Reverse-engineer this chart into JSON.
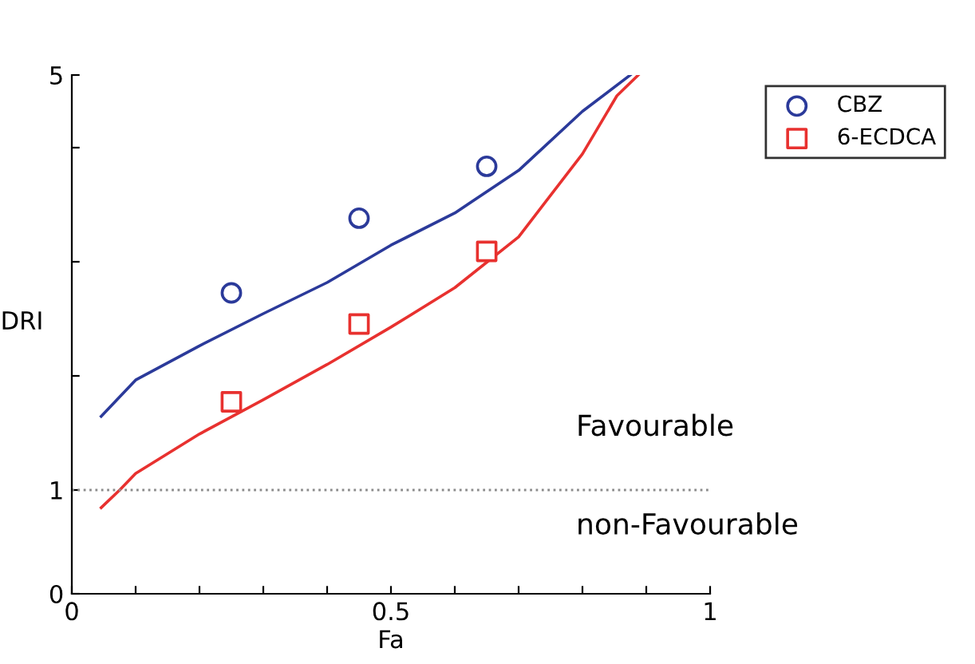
{
  "chart_data": {
    "type": "line",
    "xlabel": "Fa",
    "ylabel": "DRI",
    "xlim": [
      0,
      1
    ],
    "ylim": [
      0,
      5
    ],
    "xticks": [
      0,
      {
        "value": 0.1,
        "label": null
      },
      {
        "value": 0.2,
        "label": null
      },
      {
        "value": 0.3,
        "label": null
      },
      {
        "value": 0.4,
        "label": null
      },
      0.5,
      {
        "value": 0.6,
        "label": null
      },
      {
        "value": 0.7,
        "label": null
      },
      {
        "value": 0.8,
        "label": null
      },
      {
        "value": 0.9,
        "label": null
      },
      1
    ],
    "yticks": [
      0,
      1,
      {
        "value": 2.1,
        "label": null
      },
      {
        "value": 3.2,
        "label": null
      },
      {
        "value": 4.3,
        "label": null
      },
      5
    ],
    "grid": false,
    "legend": "top right",
    "series": [
      {
        "name": "CBZ",
        "type": "scatter",
        "marker": "circle",
        "color": "#2b3a9a",
        "x": [
          0.25,
          0.45,
          0.65
        ],
        "values": [
          2.9,
          3.62,
          4.12
        ]
      },
      {
        "name": "6-ECDCA",
        "type": "scatter",
        "marker": "square",
        "color": "#e8312f",
        "x": [
          0.25,
          0.45,
          0.65
        ],
        "values": [
          1.85,
          2.6,
          3.3
        ]
      },
      {
        "color": "#2b3a9a",
        "x": [
          0.046,
          0.1,
          0.2,
          0.3,
          0.4,
          0.5,
          0.6,
          0.7,
          0.8,
          0.875
        ],
        "values": [
          1.71,
          2.06,
          2.39,
          2.7,
          3.0,
          3.36,
          3.67,
          4.08,
          4.65,
          5.0
        ]
      },
      {
        "color": "#e8312f",
        "x": [
          0.046,
          0.075,
          0.1,
          0.2,
          0.3,
          0.4,
          0.5,
          0.6,
          0.7,
          0.8,
          0.854,
          0.8875
        ],
        "values": [
          0.83,
          1.0,
          1.16,
          1.54,
          1.87,
          2.21,
          2.57,
          2.95,
          3.44,
          4.24,
          4.8,
          5.0
        ]
      }
    ],
    "ref_lines": [
      {
        "axis": "y",
        "value": 1,
        "color": "#8c8c8c",
        "line_style": "dotted"
      }
    ],
    "annotations": [
      "Favourable",
      "non-Favourable"
    ]
  }
}
